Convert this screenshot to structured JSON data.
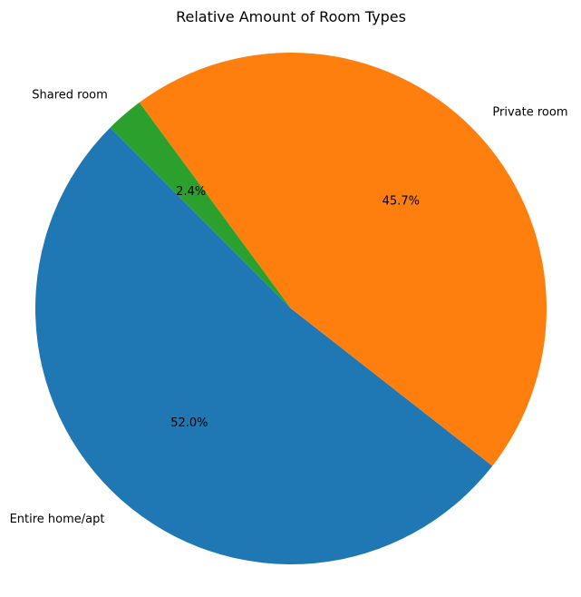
{
  "chart_data": {
    "type": "pie",
    "title": "Relative Amount of Room Types",
    "start_angle_deg": 135,
    "direction": "counterclockwise",
    "legend": "none",
    "slices": [
      {
        "label": "Entire home/apt",
        "value": 52.0,
        "pct_label": "52.0%",
        "color": "#1f77b4"
      },
      {
        "label": "Private room",
        "value": 45.7,
        "pct_label": "45.7%",
        "color": "#ff7f0e"
      },
      {
        "label": "Shared room",
        "value": 2.4,
        "pct_label": "2.4%",
        "color": "#2ca02c"
      }
    ]
  }
}
